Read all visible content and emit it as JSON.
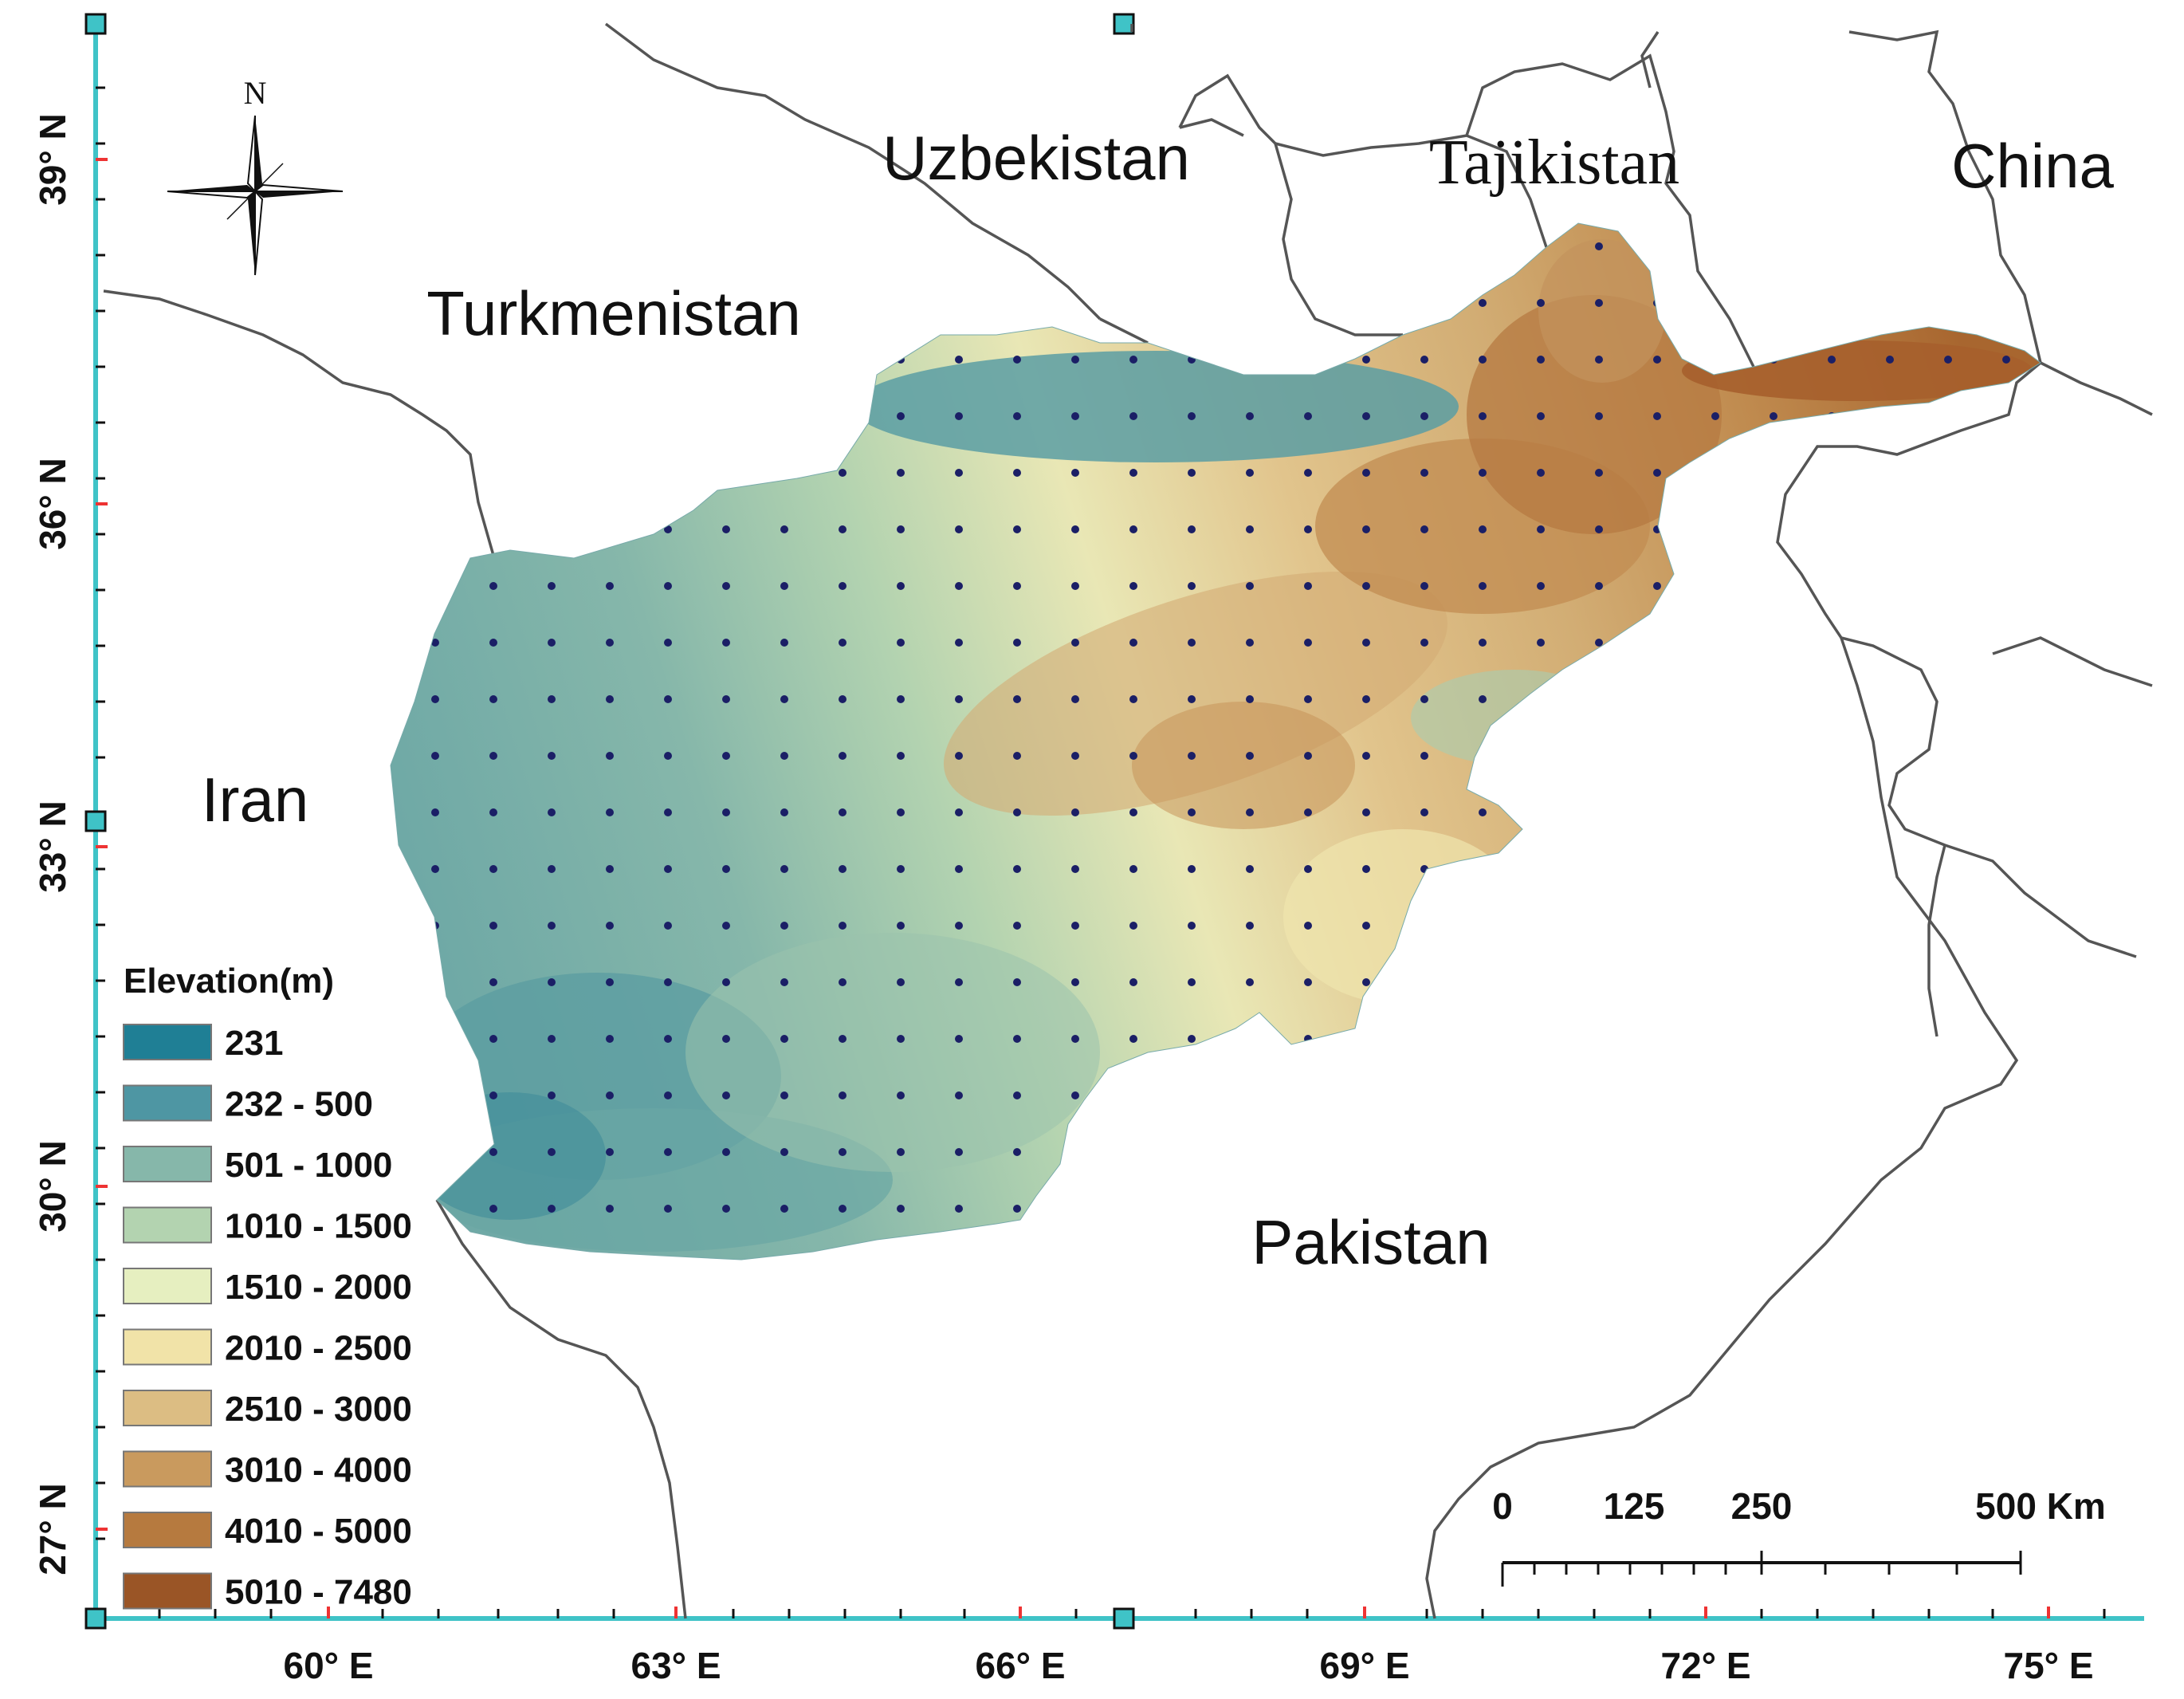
{
  "countries": {
    "uzbekistan": "Uzbekistan",
    "tajikistan": "Tajikistan",
    "china": "China",
    "turkmenistan": "Turkmenistan",
    "iran": "Iran",
    "pakistan": "Pakistan"
  },
  "north_arrow": {
    "label": "N"
  },
  "latitude_ticks": [
    "39° N",
    "36° N",
    "33° N",
    "30° N",
    "27° N"
  ],
  "longitude_ticks": [
    "60° E",
    "63° E",
    "66° E",
    "69° E",
    "72° E",
    "75° E"
  ],
  "legend": {
    "title": "Elevation(m)",
    "items": [
      {
        "label": "231",
        "color": "#1f7f95"
      },
      {
        "label": "232 - 500",
        "color": "#4e96a3"
      },
      {
        "label": "501 - 1000",
        "color": "#86b7aa"
      },
      {
        "label": "1010 - 1500",
        "color": "#b3d3b0"
      },
      {
        "label": "1510 - 2000",
        "color": "#e6efc0"
      },
      {
        "label": "2010 - 2500",
        "color": "#f1e3a8"
      },
      {
        "label": "2510 - 3000",
        "color": "#dcbd83"
      },
      {
        "label": "3010 - 4000",
        "color": "#c99a5e"
      },
      {
        "label": "4010 - 5000",
        "color": "#b67a3f"
      },
      {
        "label": "5010 - 7480",
        "color": "#9a5526"
      }
    ]
  },
  "scale_bar": {
    "labels": [
      "0",
      "125",
      "250",
      "500 Km"
    ]
  },
  "colors": {
    "frame": "#3fc3c7",
    "grid_point": "#1b1f66",
    "border": "#555555"
  }
}
